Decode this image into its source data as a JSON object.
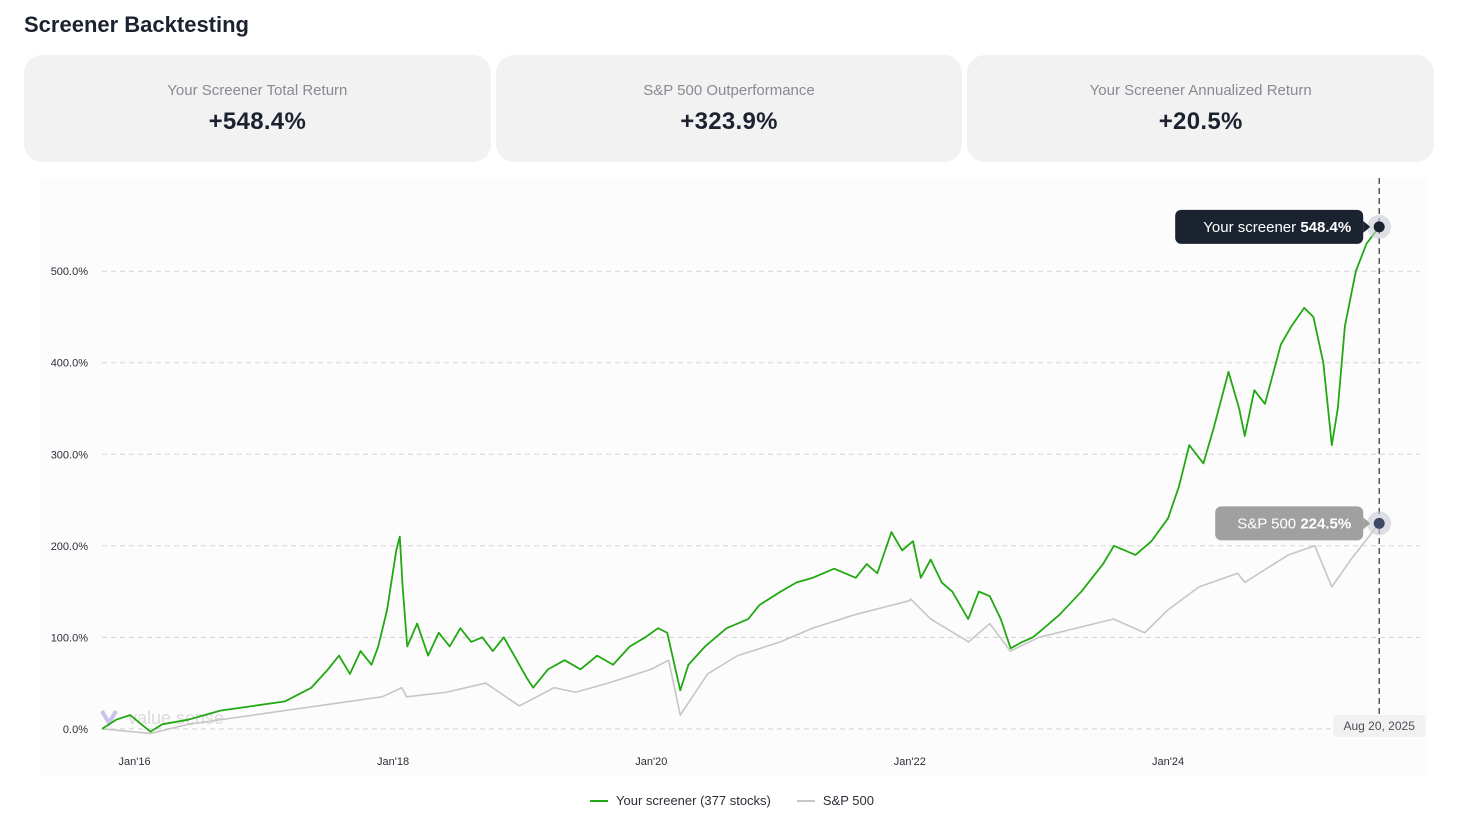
{
  "page_title": "Screener Backtesting",
  "stats": [
    {
      "label": "Your Screener Total Return",
      "value": "+548.4%"
    },
    {
      "label": "S&P 500 Outperformance",
      "value": "+323.9%"
    },
    {
      "label": "Your Screener Annualized Return",
      "value": "+20.5%"
    }
  ],
  "watermark": "value sense",
  "colors": {
    "screener": "#22a812",
    "screener_negative": "#e0382b",
    "sp500": "#c6c6c6",
    "tooltip_dark": "#1b2230",
    "tooltip_gray": "#a0a0a0"
  },
  "chart_data": {
    "type": "line",
    "xlabel": "",
    "ylabel": "",
    "x_ticks": [
      "Jan'16",
      "Jan'18",
      "Jan'20",
      "Jan'22",
      "Jan'24"
    ],
    "y_ticks": [
      "0.0%",
      "100.0%",
      "200.0%",
      "300.0%",
      "400.0%",
      "500.0%"
    ],
    "ylim": [
      -10,
      580
    ],
    "xlim": [
      "2015-10-01",
      "2025-10-15"
    ],
    "grid": true,
    "legend_position": "bottom",
    "crosshair": {
      "date": "2025-08-20",
      "label": "Aug 20, 2025"
    },
    "series": [
      {
        "name": "Your screener (377 stocks)",
        "tooltip_name": "Your screener",
        "tooltip_value": "548.4%",
        "points": [
          [
            "2015-10-01",
            0
          ],
          [
            "2015-11-10",
            10
          ],
          [
            "2015-12-20",
            15
          ],
          [
            "2016-01-20",
            5
          ],
          [
            "2016-02-15",
            -3
          ],
          [
            "2016-03-20",
            5
          ],
          [
            "2016-06-01",
            10
          ],
          [
            "2016-09-01",
            20
          ],
          [
            "2016-12-01",
            25
          ],
          [
            "2017-03-01",
            30
          ],
          [
            "2017-05-15",
            45
          ],
          [
            "2017-07-01",
            65
          ],
          [
            "2017-08-01",
            80
          ],
          [
            "2017-09-01",
            60
          ],
          [
            "2017-10-01",
            85
          ],
          [
            "2017-11-01",
            70
          ],
          [
            "2017-11-20",
            90
          ],
          [
            "2017-12-15",
            130
          ],
          [
            "2018-01-10",
            195
          ],
          [
            "2018-01-20",
            210
          ],
          [
            "2018-01-28",
            155
          ],
          [
            "2018-02-10",
            90
          ],
          [
            "2018-03-10",
            115
          ],
          [
            "2018-04-10",
            80
          ],
          [
            "2018-05-10",
            105
          ],
          [
            "2018-06-10",
            90
          ],
          [
            "2018-07-10",
            110
          ],
          [
            "2018-08-10",
            95
          ],
          [
            "2018-09-10",
            100
          ],
          [
            "2018-10-10",
            85
          ],
          [
            "2018-11-10",
            100
          ],
          [
            "2018-12-24",
            70
          ],
          [
            "2019-01-15",
            55
          ],
          [
            "2019-02-01",
            45
          ],
          [
            "2019-03-15",
            65
          ],
          [
            "2019-05-01",
            75
          ],
          [
            "2019-06-15",
            65
          ],
          [
            "2019-08-01",
            80
          ],
          [
            "2019-09-15",
            70
          ],
          [
            "2019-11-01",
            90
          ],
          [
            "2019-12-15",
            100
          ],
          [
            "2020-01-20",
            110
          ],
          [
            "2020-02-15",
            105
          ],
          [
            "2020-03-23",
            42
          ],
          [
            "2020-04-15",
            70
          ],
          [
            "2020-06-01",
            90
          ],
          [
            "2020-08-01",
            110
          ],
          [
            "2020-10-01",
            120
          ],
          [
            "2020-11-01",
            135
          ],
          [
            "2021-01-01",
            150
          ],
          [
            "2021-02-15",
            160
          ],
          [
            "2021-04-01",
            165
          ],
          [
            "2021-06-01",
            175
          ],
          [
            "2021-08-01,",
            165
          ],
          [
            "2021-09-01",
            180
          ],
          [
            "2021-10-01",
            170
          ],
          [
            "2021-11-10",
            215
          ],
          [
            "2021-12-10",
            195
          ],
          [
            "2022-01-10",
            205
          ],
          [
            "2022-02-01",
            165
          ],
          [
            "2022-03-01",
            185
          ],
          [
            "2022-04-01",
            160
          ],
          [
            "2022-05-01",
            150
          ],
          [
            "2022-06-15",
            120
          ],
          [
            "2022-07-15",
            150
          ],
          [
            "2022-08-15",
            145
          ],
          [
            "2022-09-15",
            120
          ],
          [
            "2022-10-13",
            88
          ],
          [
            "2022-11-15",
            95
          ],
          [
            "2022-12-15",
            100
          ],
          [
            "2023-01-15",
            110
          ],
          [
            "2023-03-01",
            125
          ],
          [
            "2023-05-01",
            150
          ],
          [
            "2023-07-01",
            180
          ],
          [
            "2023-08-01",
            200
          ],
          [
            "2023-10-01",
            190
          ],
          [
            "2023-11-15",
            205
          ],
          [
            "2024-01-01",
            230
          ],
          [
            "2024-02-01",
            265
          ],
          [
            "2024-03-01",
            310
          ],
          [
            "2024-04-10",
            290
          ],
          [
            "2024-05-10",
            330
          ],
          [
            "2024-06-20",
            390
          ],
          [
            "2024-07-20",
            350
          ],
          [
            "2024-08-05",
            320
          ],
          [
            "2024-09-01",
            370
          ],
          [
            "2024-10-01",
            355
          ],
          [
            "2024-11-15",
            420
          ],
          [
            "2024-12-15",
            440
          ],
          [
            "2025-01-20",
            460
          ],
          [
            "2025-02-15",
            450
          ],
          [
            "2025-03-15",
            400
          ],
          [
            "2025-04-08",
            310
          ],
          [
            "2025-04-25",
            350
          ],
          [
            "2025-05-15",
            440
          ],
          [
            "2025-06-15",
            500
          ],
          [
            "2025-07-15",
            530
          ],
          [
            "2025-08-20",
            548.4
          ]
        ]
      },
      {
        "name": "S&P 500",
        "tooltip_name": "S&P 500",
        "tooltip_value": "224.5%",
        "points": [
          [
            "2015-10-01",
            0
          ],
          [
            "2016-02-15",
            -5
          ],
          [
            "2016-06-01",
            5
          ],
          [
            "2016-12-01",
            15
          ],
          [
            "2017-06-01",
            25
          ],
          [
            "2017-12-01",
            35
          ],
          [
            "2018-01-26",
            45
          ],
          [
            "2018-02-08",
            35
          ],
          [
            "2018-06-01",
            40
          ],
          [
            "2018-09-20",
            50
          ],
          [
            "2018-12-24",
            25
          ],
          [
            "2019-04-01",
            45
          ],
          [
            "2019-06-01",
            40
          ],
          [
            "2019-09-01",
            50
          ],
          [
            "2019-12-31",
            65
          ],
          [
            "2020-02-19",
            75
          ],
          [
            "2020-03-23",
            15
          ],
          [
            "2020-06-08",
            60
          ],
          [
            "2020-09-01",
            80
          ],
          [
            "2020-12-31",
            95
          ],
          [
            "2021-04-01",
            110
          ],
          [
            "2021-08-01",
            125
          ],
          [
            "2021-12-31",
            140
          ],
          [
            "2022-01-03",
            142
          ],
          [
            "2022-03-01",
            120
          ],
          [
            "2022-06-16",
            95
          ],
          [
            "2022-08-15",
            115
          ],
          [
            "2022-10-12",
            85
          ],
          [
            "2023-01-01",
            100
          ],
          [
            "2023-07-31",
            120
          ],
          [
            "2023-10-27",
            105
          ],
          [
            "2024-01-01",
            130
          ],
          [
            "2024-03-28",
            155
          ],
          [
            "2024-07-16",
            170
          ],
          [
            "2024-08-05",
            160
          ],
          [
            "2024-12-06",
            190
          ],
          [
            "2025-02-19",
            200
          ],
          [
            "2025-04-08",
            155
          ],
          [
            "2025-06-01",
            185
          ],
          [
            "2025-08-20",
            224.5
          ]
        ]
      }
    ]
  }
}
